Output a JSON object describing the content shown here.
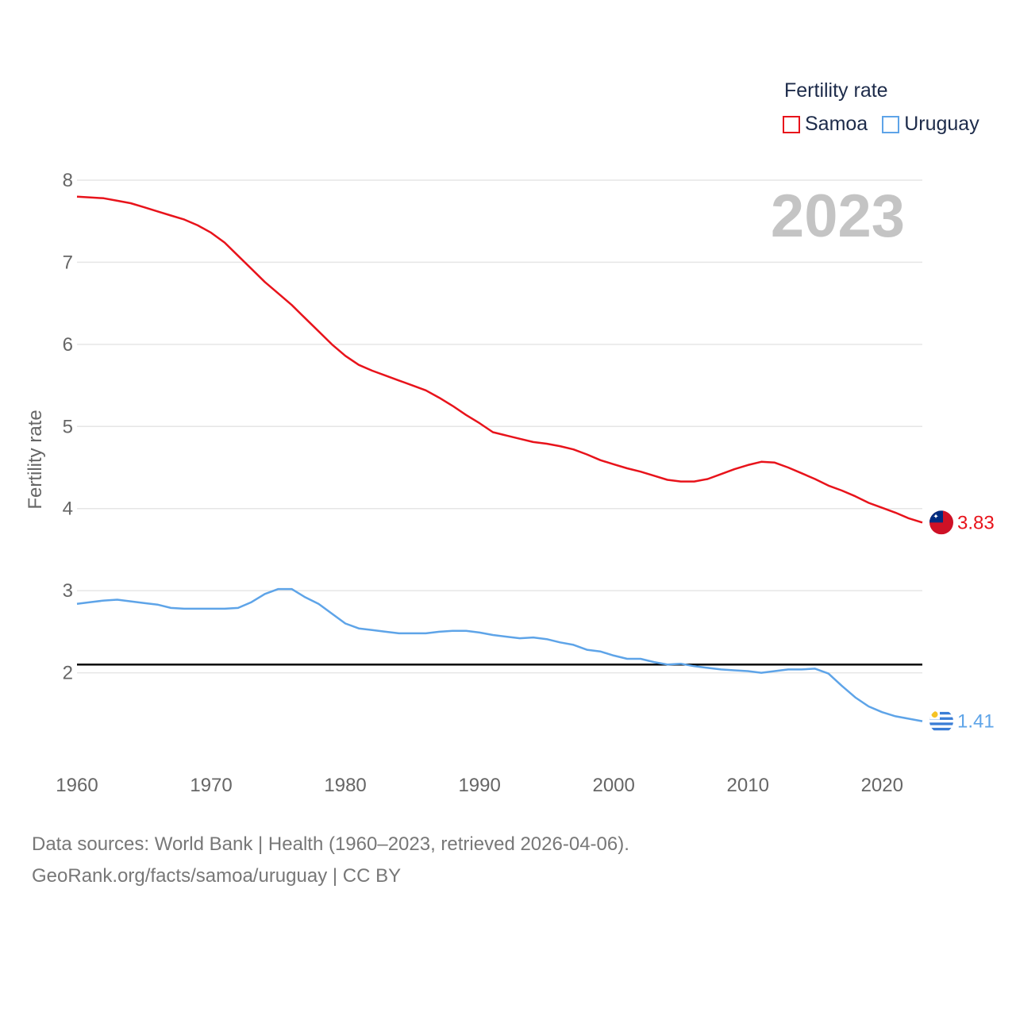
{
  "colors": {
    "samoa": "#e8131b",
    "uruguay": "#5ea4e8",
    "reference": "#000000",
    "grid": "#e6e6e6",
    "tick_text": "#666666",
    "year_watermark": "#c4c4c4"
  },
  "legend": {
    "title": "Fertility rate",
    "items": [
      {
        "name": "Samoa",
        "color": "#e8131b"
      },
      {
        "name": "Uruguay",
        "color": "#5ea4e8"
      }
    ]
  },
  "year_label": "2023",
  "footer": {
    "line1": "Data sources: World Bank | Health (1960–2023, retrieved 2026-04-06).",
    "line2": "GeoRank.org/facts/samoa/uruguay | CC BY"
  },
  "chart_data": {
    "type": "line",
    "title": "",
    "xlabel": "",
    "ylabel": "Fertility rate",
    "xlim": [
      1960,
      2023
    ],
    "ylim": [
      1.0,
      8.0
    ],
    "xticks": [
      "1960",
      "1970",
      "1980",
      "1990",
      "2000",
      "2010",
      "2020"
    ],
    "yticks": [
      "2",
      "3",
      "4",
      "5",
      "6",
      "7",
      "8"
    ],
    "reference_line": 2.1,
    "x": [
      1960,
      1961,
      1962,
      1963,
      1964,
      1965,
      1966,
      1967,
      1968,
      1969,
      1970,
      1971,
      1972,
      1973,
      1974,
      1975,
      1976,
      1977,
      1978,
      1979,
      1980,
      1981,
      1982,
      1983,
      1984,
      1985,
      1986,
      1987,
      1988,
      1989,
      1990,
      1991,
      1992,
      1993,
      1994,
      1995,
      1996,
      1997,
      1998,
      1999,
      2000,
      2001,
      2002,
      2003,
      2004,
      2005,
      2006,
      2007,
      2008,
      2009,
      2010,
      2011,
      2012,
      2013,
      2014,
      2015,
      2016,
      2017,
      2018,
      2019,
      2020,
      2021,
      2022,
      2023
    ],
    "series": [
      {
        "name": "Samoa",
        "color": "#e8131b",
        "end_label": "3.83",
        "flag": "samoa",
        "values": [
          7.8,
          7.79,
          7.78,
          7.75,
          7.72,
          7.67,
          7.62,
          7.57,
          7.52,
          7.45,
          7.36,
          7.24,
          7.08,
          6.92,
          6.76,
          6.62,
          6.48,
          6.32,
          6.16,
          6.0,
          5.86,
          5.75,
          5.68,
          5.62,
          5.56,
          5.5,
          5.44,
          5.35,
          5.25,
          5.14,
          5.04,
          4.93,
          4.89,
          4.85,
          4.81,
          4.79,
          4.76,
          4.72,
          4.66,
          4.59,
          4.54,
          4.49,
          4.45,
          4.4,
          4.35,
          4.33,
          4.33,
          4.36,
          4.42,
          4.48,
          4.53,
          4.57,
          4.56,
          4.5,
          4.43,
          4.36,
          4.28,
          4.22,
          4.15,
          4.07,
          4.01,
          3.95,
          3.88,
          3.83
        ]
      },
      {
        "name": "Uruguay",
        "color": "#5ea4e8",
        "end_label": "1.41",
        "flag": "uruguay",
        "values": [
          2.84,
          2.86,
          2.88,
          2.89,
          2.87,
          2.85,
          2.83,
          2.79,
          2.78,
          2.78,
          2.78,
          2.78,
          2.79,
          2.86,
          2.96,
          3.02,
          3.02,
          2.92,
          2.84,
          2.72,
          2.6,
          2.54,
          2.52,
          2.5,
          2.48,
          2.48,
          2.48,
          2.5,
          2.51,
          2.51,
          2.49,
          2.46,
          2.44,
          2.42,
          2.43,
          2.41,
          2.37,
          2.34,
          2.28,
          2.26,
          2.21,
          2.17,
          2.17,
          2.13,
          2.1,
          2.11,
          2.08,
          2.06,
          2.04,
          2.03,
          2.02,
          2.0,
          2.02,
          2.04,
          2.04,
          2.05,
          1.99,
          1.84,
          1.7,
          1.59,
          1.52,
          1.47,
          1.44,
          1.41
        ]
      }
    ]
  }
}
